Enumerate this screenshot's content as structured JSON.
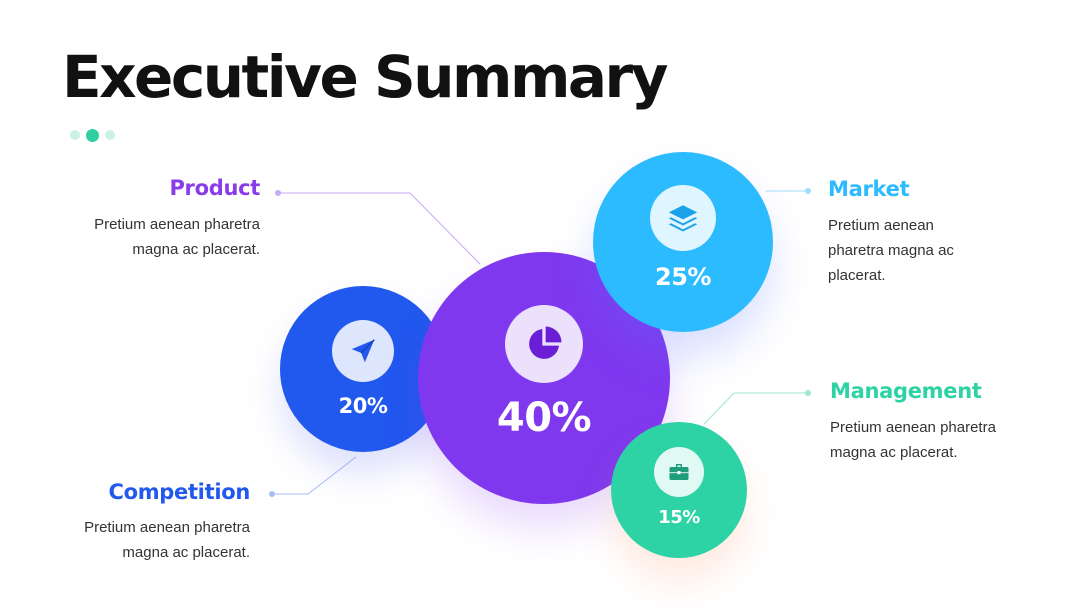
{
  "slide": {
    "title": "Executive Summary"
  },
  "colors": {
    "product": "#7f38ee",
    "competition": "#2158ee",
    "market": "#2dbbff",
    "management": "#2ed3a5",
    "accent_dot": "#2fcfa1"
  },
  "segments": {
    "product": {
      "label": "Product",
      "description": "Pretium aenean pharetra magna ac placerat.",
      "percent": "40%",
      "icon": "pie-chart-icon"
    },
    "competition": {
      "label": "Competition",
      "description": "Pretium aenean pharetra magna ac placerat.",
      "percent": "20%",
      "icon": "send-arrow-icon"
    },
    "market": {
      "label": "Market",
      "description": "Pretium aenean pharetra magna ac placerat.",
      "percent": "25%",
      "icon": "layers-icon"
    },
    "management": {
      "label": "Management",
      "description": "Pretium aenean pharetra magna ac placerat.",
      "percent": "15%",
      "icon": "briefcase-icon"
    }
  }
}
